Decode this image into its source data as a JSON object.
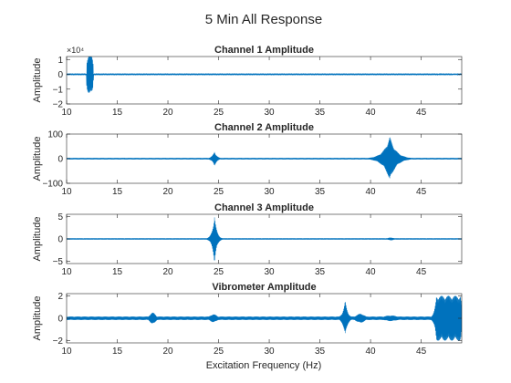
{
  "figure": {
    "title": "5 Min All Response",
    "xlabel": "Excitation Frequency (Hz)"
  },
  "chart_data": [
    {
      "type": "line",
      "title": "Channel 1 Amplitude",
      "ylabel": "Amplitude",
      "xlim": [
        10,
        49
      ],
      "ylim": [
        -2,
        1.2
      ],
      "y_multiplier": "×10⁴",
      "xticks": [
        10,
        15,
        20,
        25,
        30,
        35,
        40,
        45
      ],
      "yticks": [
        -2,
        -1,
        0,
        1
      ],
      "color": "#0072BD",
      "envelope": {
        "baseline": 0.03,
        "features": [
          {
            "center": 12.3,
            "width": 0.35,
            "amplitude": 1.35,
            "shape": "burst"
          },
          {
            "center": 45.2,
            "width": 0.25,
            "amplitude": 0.06,
            "shape": "bump"
          },
          {
            "center": 46.9,
            "width": 0.4,
            "amplitude": 0.06,
            "shape": "bump"
          },
          {
            "center": 48.3,
            "width": 0.5,
            "amplitude": 0.05,
            "shape": "bump"
          }
        ]
      }
    },
    {
      "type": "line",
      "title": "Channel 2 Amplitude",
      "ylabel": "Amplitude",
      "xlim": [
        10,
        49
      ],
      "ylim": [
        -100,
        100
      ],
      "xticks": [
        10,
        15,
        20,
        25,
        30,
        35,
        40,
        45
      ],
      "yticks": [
        -100,
        0,
        100
      ],
      "color": "#0072BD",
      "envelope": {
        "baseline": 3,
        "features": [
          {
            "center": 24.6,
            "width": 0.4,
            "amplitude": 30,
            "shape": "resonance"
          },
          {
            "center": 41.9,
            "width": 1.0,
            "amplitude": 90,
            "shape": "resonance"
          }
        ]
      }
    },
    {
      "type": "line",
      "title": "Channel 3 Amplitude",
      "ylabel": "Amplitude",
      "xlim": [
        10,
        49
      ],
      "ylim": [
        -5.5,
        5.5
      ],
      "xticks": [
        10,
        15,
        20,
        25,
        30,
        35,
        40,
        45
      ],
      "yticks": [
        -5,
        0,
        5
      ],
      "color": "#0072BD",
      "envelope": {
        "baseline": 0.15,
        "features": [
          {
            "center": 24.6,
            "width": 0.35,
            "amplitude": 5.5,
            "shape": "resonance"
          },
          {
            "center": 42.0,
            "width": 0.4,
            "amplitude": 0.3,
            "shape": "bump"
          }
        ]
      }
    },
    {
      "type": "line",
      "title": "Vibrometer Amplitude",
      "ylabel": "Amplitude",
      "xlim": [
        10,
        49
      ],
      "ylim": [
        -2.2,
        2.2
      ],
      "xticks": [
        10,
        15,
        20,
        25,
        30,
        35,
        40,
        45
      ],
      "yticks": [
        -2,
        0,
        2
      ],
      "color": "#0072BD",
      "envelope": {
        "baseline": 0.15,
        "features": [
          {
            "center": 18.5,
            "width": 0.4,
            "amplitude": 0.5,
            "shape": "bump"
          },
          {
            "center": 24.5,
            "width": 0.5,
            "amplitude": 0.35,
            "shape": "bump"
          },
          {
            "center": 37.5,
            "width": 0.4,
            "amplitude": 1.6,
            "shape": "resonance"
          },
          {
            "center": 39.0,
            "width": 0.6,
            "amplitude": 0.4,
            "shape": "bump"
          },
          {
            "center": 42.0,
            "width": 1.0,
            "amplitude": 0.25,
            "shape": "bump"
          },
          {
            "center": 47.7,
            "width": 1.2,
            "amplitude": 2.0,
            "shape": "plateau"
          }
        ]
      }
    }
  ]
}
